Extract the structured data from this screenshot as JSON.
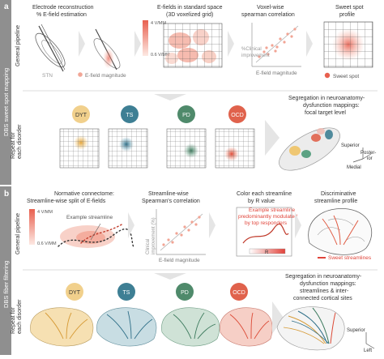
{
  "panel_a": {
    "letter": "a",
    "side_label": "DBS sweet spot mapping",
    "row1_label": "General pipeline",
    "row2_label_line1": "Repeat for",
    "row2_label_line2": "each disorder",
    "step1_title_line1": "Electrode reconstruction",
    "step1_title_line2": "% E-field estimation",
    "stn_label": "STN",
    "efield_legend": "E-field magnitude",
    "step2_title_line1": "E-fields in standard space",
    "step2_title_line2": "(3D voxelized grid)",
    "scale_max": "4 V/MM",
    "scale_min": "0.6 V/MM",
    "step3_title_line1": "Voxel-wise",
    "step3_title_line2": "spearman correlation",
    "y_axis_line1": "%Clinical",
    "y_axis_line2": "improvement",
    "x_axis": "E-field magnitude",
    "step4_title_line1": "Sweet spot",
    "step4_title_line2": "profile",
    "sweet_spot_legend": "Sweet spot",
    "disorders": [
      "DYT",
      "TS",
      "PD",
      "OCD"
    ],
    "disorder_colors": [
      "#e8b94f",
      "#3e7f94",
      "#4f8a6b",
      "#e0624c"
    ],
    "seg_title_line1": "Segregation in neuroanatomy-",
    "seg_title_line2": "dysfunction mappings:",
    "seg_title_line3": "focal target level",
    "dir_superior": "Superior",
    "dir_posterior_line1": "Poster-",
    "dir_posterior_line2": "ior",
    "dir_medial": "Medial"
  },
  "panel_b": {
    "letter": "b",
    "side_label": "DBS fiber filtering",
    "row1_label": "General pipeline",
    "row2_label_line1": "Repeat for",
    "row2_label_line2": "each disorder",
    "step1_title_line1": "Normative connectome:",
    "step1_title_line2": "Streamline-wise split of E-fields",
    "example_streamline": "Example streamline",
    "scale_max": "4 V/MM",
    "scale_min": "0.6 V/MM",
    "step2_title_line1": "Streamline-wise",
    "step2_title_line2": "Spearman's correlation",
    "y_axis_line1": "Clinical",
    "y_axis_line2": "improvement (%)",
    "x_axis": "E-field magnitude",
    "step3_title_line1": "Color each streamline",
    "step3_title_line2": "by R value",
    "step3_note_line1": "Example streamline",
    "step3_note_line2": "predominantly modulated",
    "step3_note_line3": "by top responders",
    "r_label": "R",
    "step4_title_line1": "Discriminative",
    "step4_title_line2": "streamline profile",
    "sweet_streamlines_legend": "Sweet streamlines",
    "disorders": [
      "DYT",
      "TS",
      "PD",
      "OCD"
    ],
    "disorder_colors": [
      "#e8b94f",
      "#3e7f94",
      "#4f8a6b",
      "#e0624c"
    ],
    "seg_title_line1": "Segregation in neuroanatomy-",
    "seg_title_line2": "dysfunction mappings:",
    "seg_title_line3": "streamlines & inter-",
    "seg_title_line4": "connected cortical sites",
    "dir_superior": "Superior",
    "dir_left": "Left"
  }
}
